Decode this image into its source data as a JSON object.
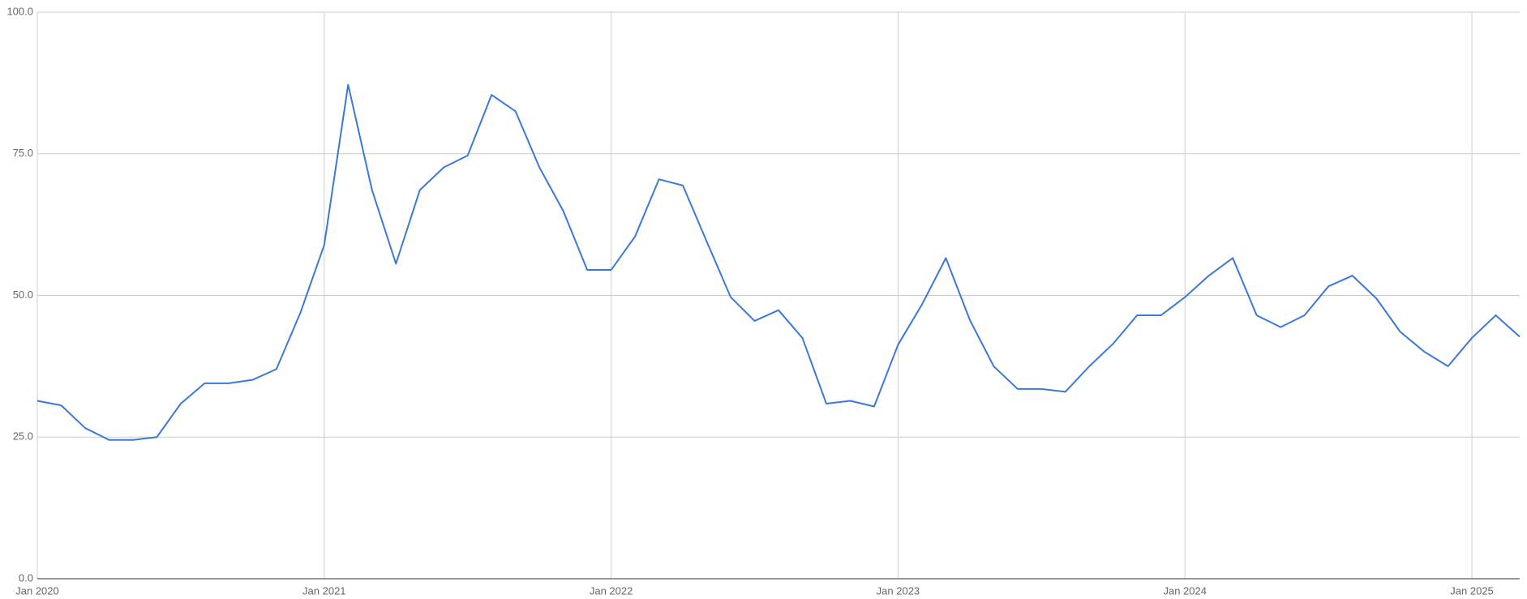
{
  "chart_data": {
    "type": "line",
    "x": [
      "2020-01",
      "2020-02",
      "2020-03",
      "2020-04",
      "2020-05",
      "2020-06",
      "2020-07",
      "2020-08",
      "2020-09",
      "2020-10",
      "2020-11",
      "2020-12",
      "2021-01",
      "2021-02",
      "2021-03",
      "2021-04",
      "2021-05",
      "2021-06",
      "2021-07",
      "2021-08",
      "2021-09",
      "2021-10",
      "2021-11",
      "2021-12",
      "2022-01",
      "2022-02",
      "2022-03",
      "2022-04",
      "2022-05",
      "2022-06",
      "2022-07",
      "2022-08",
      "2022-09",
      "2022-10",
      "2022-11",
      "2022-12",
      "2023-01",
      "2023-02",
      "2023-03",
      "2023-04",
      "2023-05",
      "2023-06",
      "2023-07",
      "2023-08",
      "2023-09",
      "2023-10",
      "2023-11",
      "2023-12",
      "2024-01",
      "2024-02",
      "2024-03",
      "2024-04",
      "2024-05",
      "2024-06",
      "2024-07",
      "2024-08",
      "2024-09",
      "2024-10",
      "2024-11",
      "2024-12",
      "2025-01",
      "2025-02",
      "2025-03"
    ],
    "series": [
      {
        "color": "#3c78d8",
        "values": [
          31.4,
          30.6,
          26.6,
          24.5,
          24.5,
          25.0,
          30.9,
          34.5,
          34.5,
          35.1,
          37.0,
          46.9,
          58.9,
          87.2,
          68.6,
          55.6,
          68.6,
          72.6,
          74.7,
          85.4,
          82.5,
          72.6,
          64.9,
          54.5,
          54.5,
          60.4,
          70.5,
          69.4,
          59.5,
          49.7,
          45.5,
          47.4,
          42.5,
          30.9,
          31.4,
          30.4,
          41.3,
          48.4,
          56.6,
          45.7,
          37.5,
          33.5,
          33.5,
          33.0,
          37.5,
          41.5,
          46.5,
          46.5,
          49.7,
          53.5,
          56.6,
          46.5,
          44.4,
          46.5,
          51.6,
          53.5,
          49.5,
          43.6,
          40.1,
          37.5,
          42.5,
          46.5,
          42.7
        ]
      }
    ],
    "xlim": [
      "2020-01",
      "2025-03"
    ],
    "xticks": [
      {
        "value": "2020-01",
        "label": "Jan 2020"
      },
      {
        "value": "2021-01",
        "label": "Jan 2021"
      },
      {
        "value": "2022-01",
        "label": "Jan 2022"
      },
      {
        "value": "2023-01",
        "label": "Jan 2023"
      },
      {
        "value": "2024-01",
        "label": "Jan 2024"
      },
      {
        "value": "2025-01",
        "label": "Jan 2025"
      }
    ],
    "ylim": [
      0,
      100
    ],
    "yticks": [
      {
        "value": 0,
        "label": "0.0"
      },
      {
        "value": 25,
        "label": "25.0"
      },
      {
        "value": 50,
        "label": "50.0"
      },
      {
        "value": 75,
        "label": "75.0"
      },
      {
        "value": 100,
        "label": "100.0"
      }
    ],
    "grid": true
  }
}
